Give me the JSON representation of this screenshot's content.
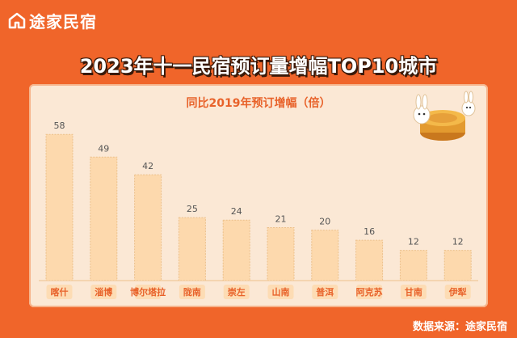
{
  "brand": {
    "name": "途家民宿",
    "icon": "house-logo-icon"
  },
  "colors": {
    "background": "#f0652a",
    "bar_fill": "#fdd9ad",
    "bar_border": "#ecc08a",
    "accent": "#e8622a"
  },
  "decoration": {
    "icon": "mooncake-rabbit-icon"
  },
  "source": "数据来源：途家民宿",
  "chart_data": {
    "type": "bar",
    "title": "2023年十一民宿预订量增幅TOP10城市",
    "subtitle": "同比2019年预订增幅（倍）",
    "categories": [
      "喀什",
      "淄博",
      "博尔塔拉",
      "陇南",
      "崇左",
      "山南",
      "普洱",
      "阿克苏",
      "甘南",
      "伊犁"
    ],
    "values": [
      58,
      49,
      42,
      25,
      24,
      21,
      20,
      16,
      12,
      12
    ],
    "data_labels": [
      "58",
      "49",
      "42",
      "25",
      "24",
      "21",
      "20",
      "16",
      "12",
      "12"
    ],
    "ylim": [
      0,
      60
    ],
    "grid": false,
    "legend": "none"
  }
}
